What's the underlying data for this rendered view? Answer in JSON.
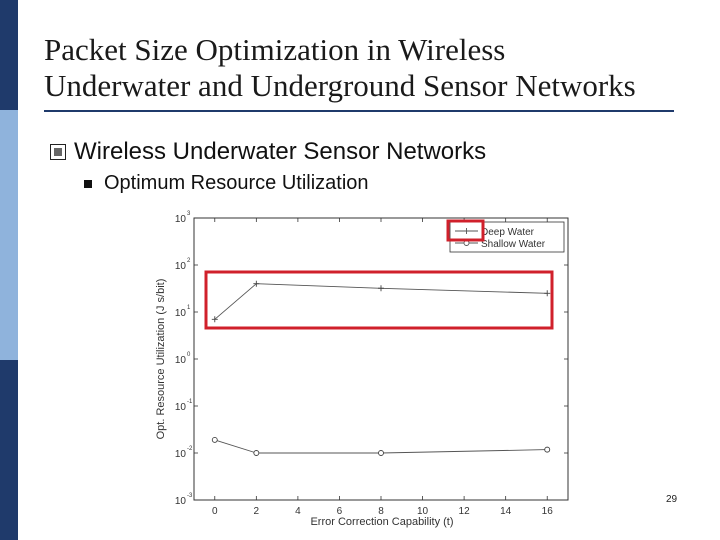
{
  "slide": {
    "title_line1": "Packet Size Optimization in Wireless",
    "title_line2": "Underwater and Underground Sensor Networks",
    "bullet1": "Wireless Underwater Sensor Networks",
    "bullet2": "Optimum Resource Utilization",
    "page_number": "29"
  },
  "colors": {
    "sidebar_top": "#1f3a6b",
    "sidebar_mid": "#8fb3dc",
    "highlight": "#d0202b"
  },
  "chart_data": {
    "type": "line",
    "xlabel": "Error Correction Capability (t)",
    "ylabel": "Opt. Resource Utilization (J s/bit)",
    "x_ticks": [
      0,
      2,
      4,
      6,
      8,
      10,
      12,
      14,
      16
    ],
    "xlim": [
      -1,
      17
    ],
    "y_scale": "log",
    "ylim": [
      0.001,
      1000
    ],
    "y_tick_bases": [
      "10",
      "10",
      "10",
      "10",
      "10",
      "10",
      "10"
    ],
    "y_tick_exps": [
      "-3",
      "-2",
      "-1",
      "0",
      "1",
      "2",
      "3"
    ],
    "y_tick_values": [
      0.001,
      0.01,
      0.1,
      1,
      10,
      100,
      1000
    ],
    "grid": false,
    "legend_position": "top-right",
    "series": [
      {
        "name": "Deep Water",
        "marker": "plus",
        "x": [
          0,
          2,
          8,
          16
        ],
        "y": [
          7,
          40,
          32,
          25
        ]
      },
      {
        "name": "Shallow Water",
        "marker": "circle",
        "x": [
          0,
          2,
          8,
          16
        ],
        "y": [
          0.019,
          0.01,
          0.01,
          0.0118
        ]
      }
    ]
  }
}
